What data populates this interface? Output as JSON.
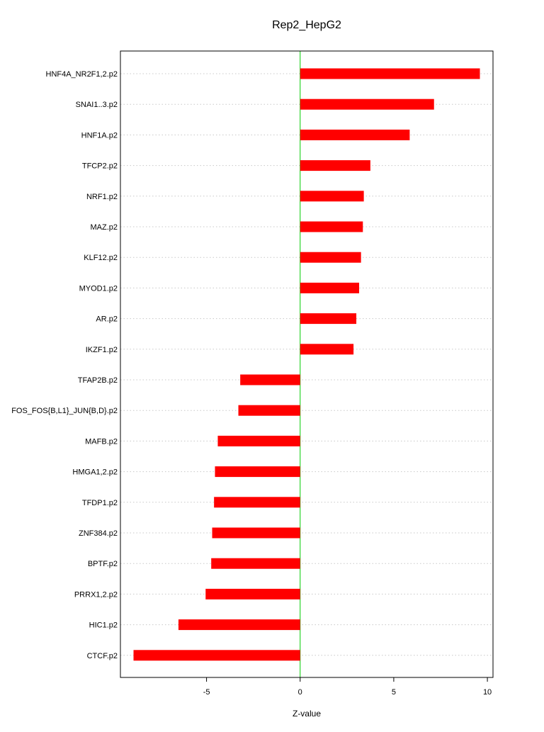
{
  "chart_data": {
    "type": "bar",
    "orientation": "horizontal",
    "title": "Rep2_HepG2",
    "xlabel": "Z-value",
    "ylabel": "",
    "categories": [
      "HNF4A_NR2F1,2.p2",
      "SNAI1..3.p2",
      "HNF1A.p2",
      "TFCP2.p2",
      "NRF1.p2",
      "MAZ.p2",
      "KLF12.p2",
      "MYOD1.p2",
      "AR.p2",
      "IKZF1.p2",
      "TFAP2B.p2",
      "FOS_FOS{B,L1}_JUN{B,D}.p2",
      "MAFB.p2",
      "HMGA1,2.p2",
      "TFDP1.p2",
      "ZNF384.p2",
      "BPTF.p2",
      "PRRX1,2.p2",
      "HIC1.p2",
      "CTCF.p2"
    ],
    "values": [
      9.6,
      7.15,
      5.85,
      3.75,
      3.4,
      3.35,
      3.25,
      3.15,
      3.0,
      2.85,
      -3.2,
      -3.3,
      -4.4,
      -4.55,
      -4.6,
      -4.7,
      -4.75,
      -5.05,
      -6.5,
      -8.9
    ],
    "xlim": [
      -9.6,
      10.3
    ],
    "xticks": [
      -5,
      0,
      5,
      10
    ],
    "grid": "horizontal-dotted",
    "bar_color": "#ff0000",
    "zero_line_color": "#00cc00",
    "grid_color": "#c8c8c8"
  }
}
